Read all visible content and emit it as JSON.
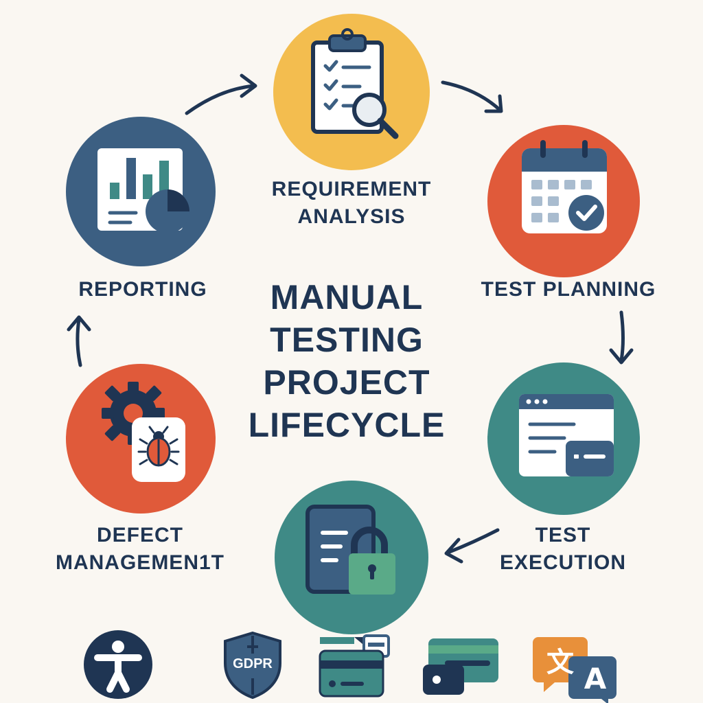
{
  "title_lines": [
    "MANUAL",
    "TESTING",
    "PROJECT",
    "LIFECYCLE"
  ],
  "stages": {
    "requirement_analysis": {
      "line1": "REQUIREMENT",
      "line2": "ANALYSIS",
      "color": "#f3bd4f",
      "icon": "clipboard-checklist-magnifier-icon"
    },
    "test_planning": {
      "line1": "TEST PLANNING",
      "color": "#e05a3a",
      "icon": "calendar-check-icon"
    },
    "test_execution": {
      "line1": "TEST",
      "line2": "EXECUTION",
      "color": "#3f8a86",
      "icon": "browser-window-icon"
    },
    "security": {
      "color": "#3f8a86",
      "icon": "document-padlock-icon"
    },
    "defect_management": {
      "line1": "DEFECT",
      "line2": "MANAGEMEN1T",
      "color": "#e05a3a",
      "icon": "gear-bug-icon"
    },
    "reporting": {
      "line1": "REPORTING",
      "color": "#3c5f82",
      "icon": "bar-chart-report-icon"
    }
  },
  "bottom_icons": {
    "accessibility": {
      "icon": "accessibility-icon"
    },
    "gdpr": {
      "text": "GDPR",
      "icon": "gdpr-shield-icon"
    },
    "cards": {
      "icon": "cards-icon"
    },
    "payment": {
      "icon": "payment-card-icon"
    },
    "translate": {
      "text1": "文",
      "text2": "A",
      "icon": "translate-icon"
    }
  },
  "colors": {
    "navy": "#1f3553",
    "yellow": "#f3bd4f",
    "red": "#e05a3a",
    "teal": "#3f8a86",
    "blue": "#3c5f82",
    "background": "#faf7f2"
  }
}
